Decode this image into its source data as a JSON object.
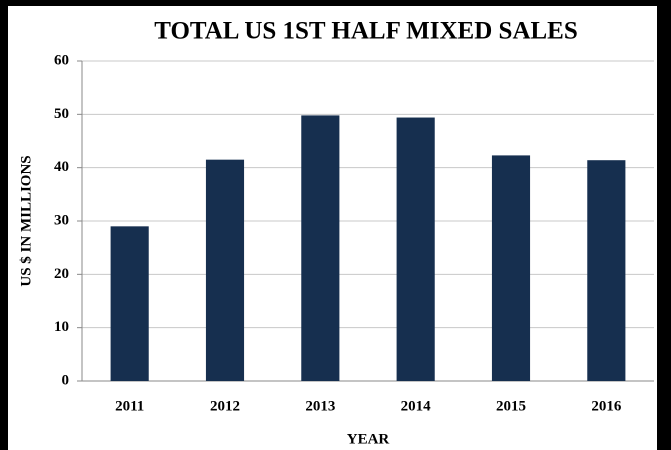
{
  "chart_data": {
    "type": "bar",
    "title": "TOTAL US 1ST HALF MIXED SALES",
    "x_label": "YEAR",
    "y_label": "US $ IN MILLIONS",
    "categories": [
      "2011",
      "2012",
      "2013",
      "2014",
      "2015",
      "2016"
    ],
    "values": [
      29,
      41.5,
      49.8,
      49.4,
      42.3,
      41.4
    ],
    "color": "#162f4f",
    "ylim": [
      0,
      60
    ],
    "yticks": [
      0,
      10,
      20,
      30,
      40,
      50,
      60
    ],
    "grid": true
  }
}
